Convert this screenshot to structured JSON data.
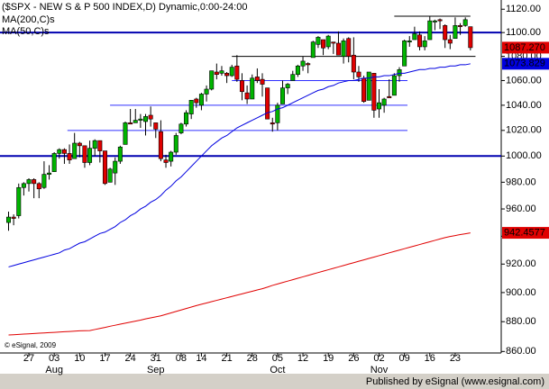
{
  "chart_data": {
    "type": "candlestick",
    "title": "($SPX - NEW S & P 500 INDEX,D) Dynamic,0:00-24:00",
    "log_scale": true,
    "ylim": [
      859,
      1128
    ],
    "yticks": [
      {
        "value": 860,
        "label": "860.00"
      },
      {
        "value": 880,
        "label": "880.00"
      },
      {
        "value": 900,
        "label": "900.00"
      },
      {
        "value": 920,
        "label": "920.00"
      },
      {
        "value": 940,
        "label": "940.00"
      },
      {
        "value": 960,
        "label": "960.00"
      },
      {
        "value": 980,
        "label": "980.00"
      },
      {
        "value": 1000,
        "label": "1000.00"
      },
      {
        "value": 1020,
        "label": "1020.00"
      },
      {
        "value": 1040,
        "label": "1040.00"
      },
      {
        "value": 1060,
        "label": "1060.00"
      },
      {
        "value": 1080,
        "label": "1080.00"
      },
      {
        "value": 1100,
        "label": "1100.00"
      },
      {
        "value": 1120,
        "label": "1120.00"
      }
    ],
    "categories": [
      null,
      null,
      null,
      null,
      "27",
      null,
      null,
      null,
      null,
      "03",
      null,
      null,
      null,
      null,
      "10",
      null,
      null,
      null,
      null,
      "17",
      null,
      null,
      null,
      null,
      "24",
      null,
      null,
      null,
      null,
      "31",
      null,
      null,
      null,
      null,
      "08",
      null,
      null,
      null,
      "14",
      null,
      null,
      null,
      null,
      "21",
      null,
      null,
      null,
      null,
      "28",
      null,
      null,
      null,
      null,
      "05",
      null,
      null,
      null,
      null,
      "12",
      null,
      null,
      null,
      null,
      "19",
      null,
      null,
      null,
      null,
      "26",
      null,
      null,
      null,
      null,
      "02",
      null,
      null,
      null,
      null,
      "09",
      null,
      null,
      null,
      null,
      "16",
      null,
      null,
      null,
      null,
      "23",
      null,
      null,
      null
    ],
    "months": [
      null,
      null,
      null,
      null,
      null,
      null,
      null,
      null,
      null,
      "Aug",
      null,
      null,
      null,
      null,
      null,
      null,
      null,
      null,
      null,
      null,
      null,
      null,
      null,
      null,
      null,
      null,
      null,
      null,
      null,
      "Sep",
      null,
      null,
      null,
      null,
      null,
      null,
      null,
      null,
      null,
      null,
      null,
      null,
      null,
      null,
      null,
      null,
      null,
      null,
      null,
      null,
      null,
      null,
      null,
      "Oct",
      null,
      null,
      null,
      null,
      null,
      null,
      null,
      null,
      null,
      null,
      null,
      null,
      null,
      null,
      null,
      null,
      null,
      null,
      null,
      "Nov",
      null,
      null,
      null,
      null,
      null,
      null,
      null,
      null,
      null,
      null,
      null,
      null,
      null,
      null,
      null,
      null,
      null,
      null
    ],
    "price": {
      "color_up": "#00b400",
      "color_down": "#e00000",
      "last_label": "1087.270",
      "label_color": "#e00000",
      "open": [
        950,
        954,
        955,
        976,
        979,
        982,
        979,
        976,
        986,
        988,
        1002,
        1005,
        1002,
        998,
        1010,
        1008,
        995,
        1006,
        1012,
        1004,
        980,
        987,
        996,
        1009,
        1026,
        1026,
        1028,
        1027,
        1032,
        1026,
        1019,
        997,
        996,
        1003,
        1018,
        1025,
        1033,
        1045,
        1040,
        1049,
        1053,
        1067,
        1066,
        1066,
        1064,
        1072,
        1060,
        1050,
        1045,
        1063,
        1061,
        1054,
        1026,
        1026,
        1041,
        1054,
        1060,
        1065,
        1072,
        1074,
        1079,
        1090,
        1094,
        1088,
        1092,
        1091,
        1080,
        1095,
        1081,
        1067,
        1062,
        1044,
        1066,
        1037,
        1040,
        1047,
        1048,
        1064,
        1072,
        1092,
        1094,
        1098,
        1088,
        1094,
        1109,
        1111,
        1106,
        1094,
        1095,
        1106,
        1106,
        1105
      ],
      "high": [
        958,
        956,
        979,
        980,
        983,
        983,
        980,
        996,
        993,
        1003,
        1006,
        1006,
        1009,
        1018,
        1011,
        1008,
        1012,
        1013,
        1012,
        1004,
        991,
        999,
        1008,
        1027,
        1037,
        1037,
        1033,
        1033,
        1039,
        1026,
        1028,
        1001,
        1004,
        1018,
        1026,
        1036,
        1044,
        1046,
        1050,
        1056,
        1068,
        1074,
        1072,
        1067,
        1073,
        1081,
        1066,
        1056,
        1065,
        1070,
        1066,
        1054,
        1030,
        1042,
        1060,
        1058,
        1068,
        1073,
        1080,
        1075,
        1093,
        1097,
        1094,
        1098,
        1092,
        1101,
        1095,
        1096,
        1096,
        1072,
        1064,
        1067,
        1066,
        1053,
        1046,
        1061,
        1066,
        1071,
        1094,
        1097,
        1105,
        1101,
        1097,
        1114,
        1111,
        1112,
        1107,
        1098,
        1113,
        1108,
        1113,
        1105
      ],
      "low": [
        944,
        948,
        953,
        970,
        973,
        968,
        968,
        975,
        982,
        988,
        998,
        994,
        994,
        998,
        999,
        991,
        993,
        1000,
        995,
        978,
        980,
        978,
        994,
        1009,
        1025,
        1026,
        1022,
        1016,
        1023,
        1014,
        996,
        991,
        992,
        1001,
        1017,
        1023,
        1029,
        1038,
        1036,
        1043,
        1052,
        1061,
        1064,
        1058,
        1063,
        1059,
        1044,
        1041,
        1045,
        1058,
        1047,
        1029,
        1019,
        1020,
        1041,
        1049,
        1060,
        1063,
        1068,
        1066,
        1079,
        1087,
        1081,
        1086,
        1082,
        1081,
        1074,
        1075,
        1061,
        1059,
        1042,
        1044,
        1030,
        1030,
        1034,
        1046,
        1048,
        1059,
        1072,
        1088,
        1094,
        1085,
        1085,
        1094,
        1102,
        1103,
        1087,
        1086,
        1095,
        1098,
        1105,
        1085
      ],
      "close": [
        954,
        953,
        976,
        979,
        982,
        979,
        975,
        986,
        987,
        1002,
        1005,
        1002,
        997,
        1010,
        1008,
        995,
        1006,
        1012,
        1004,
        979,
        990,
        996,
        1007,
        1026,
        1025,
        1028,
        1029,
        1031,
        1029,
        1021,
        998,
        995,
        1003,
        1016,
        1025,
        1034,
        1044,
        1042,
        1049,
        1053,
        1068,
        1065,
        1068,
        1064,
        1071,
        1061,
        1051,
        1045,
        1062,
        1060,
        1057,
        1029,
        1025,
        1040,
        1054,
        1057,
        1065,
        1072,
        1076,
        1073,
        1092,
        1096,
        1087,
        1097,
        1091,
        1081,
        1093,
        1080,
        1067,
        1063,
        1043,
        1067,
        1036,
        1042,
        1045,
        1046,
        1064,
        1069,
        1093,
        1093,
        1099,
        1088,
        1093,
        1110,
        1110,
        1110,
        1094,
        1091,
        1106,
        1105,
        1111,
        1087.27
      ]
    },
    "overlays": [
      {
        "name": "MA(200,C)s",
        "color": "#e00000",
        "last_label": "942.4577",
        "values": [
          871,
          871.2,
          871.4,
          871.6,
          871.8,
          872,
          872.2,
          872.4,
          872.6,
          872.8,
          873,
          873.2,
          873.4,
          873.6,
          873.8,
          873.9,
          874,
          874.7,
          875.4,
          876.1,
          876.9,
          877.6,
          878.3,
          879,
          879.7,
          880.4,
          881.1,
          881.9,
          882.6,
          883.3,
          884,
          885,
          886,
          887,
          888,
          889,
          890,
          891,
          891.9,
          892.8,
          893.7,
          894.6,
          895.5,
          896.4,
          897.3,
          898.2,
          899.1,
          900,
          900.9,
          901.8,
          902.7,
          903.8,
          905,
          906,
          907,
          908,
          909,
          910,
          911,
          912,
          913,
          914,
          915,
          916,
          917,
          918,
          919,
          920,
          921,
          922,
          923,
          924,
          925,
          926,
          927,
          928,
          929,
          930,
          931,
          932,
          933,
          934,
          935,
          936,
          937,
          938,
          939,
          939.8,
          940.5,
          941.2,
          941.8,
          942.4577
        ]
      },
      {
        "name": "MA(50,C)s",
        "color": "#0000e0",
        "last_label": "1073.829",
        "values": [
          918,
          919,
          920,
          921,
          922,
          923,
          924,
          925,
          926,
          927,
          928,
          930,
          931,
          933,
          935,
          936,
          938,
          940,
          942,
          943,
          945,
          947,
          950,
          952,
          955,
          957,
          960,
          962,
          965,
          967,
          970,
          974,
          977,
          981,
          984,
          988,
          992,
          996,
          1000,
          1004,
          1008,
          1011,
          1014,
          1016,
          1019,
          1022,
          1024,
          1026,
          1028,
          1030,
          1032,
          1034,
          1035,
          1037,
          1038,
          1040,
          1042,
          1044,
          1046,
          1048,
          1050,
          1052,
          1053,
          1055,
          1056,
          1058,
          1059,
          1060,
          1060,
          1061,
          1062,
          1062,
          1063,
          1063,
          1064,
          1064,
          1065,
          1066,
          1066,
          1067,
          1068,
          1069,
          1069,
          1070,
          1070,
          1071,
          1071,
          1072,
          1072,
          1073,
          1073,
          1073.829
        ]
      }
    ],
    "hlines": [
      {
        "value": 1100,
        "color": "#0000b0",
        "width": 2
      },
      {
        "value": 1000,
        "color": "#0000b0",
        "width": 2
      },
      {
        "value": 1114,
        "color": "#000000",
        "width": 1,
        "from": 76,
        "to": 91
      },
      {
        "value": 1080,
        "color": "#000000",
        "width": 1,
        "from": 44,
        "to": 92
      },
      {
        "value": 1060,
        "color": "#3030ff",
        "width": 1,
        "from": 44,
        "to": 78.6
      },
      {
        "value": 1040,
        "color": "#3030ff",
        "width": 1,
        "from": 20,
        "to": 78.6
      },
      {
        "value": 1020,
        "color": "#3030ff",
        "width": 1,
        "from": 11.6,
        "to": 78.6
      }
    ],
    "watermark": "© eSignal, 2009",
    "footer": "Published by eSignal (www.esignal.com)"
  }
}
